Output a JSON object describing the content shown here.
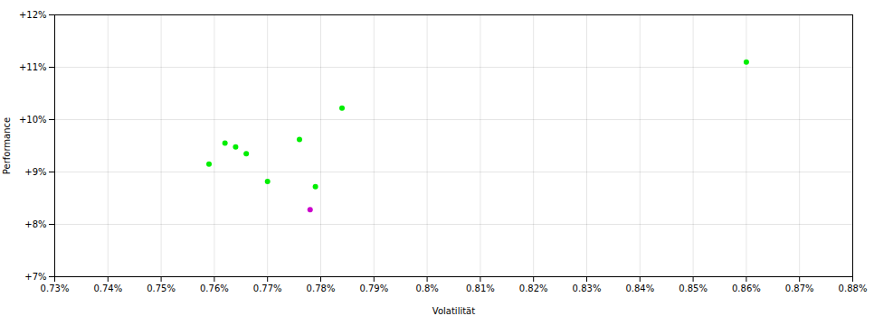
{
  "chart_data": {
    "type": "scatter",
    "xlabel": "Volatilität",
    "ylabel": "Performance",
    "series": [
      {
        "color": "#00ee00",
        "values": [
          [
            0.759,
            9.15
          ],
          [
            0.762,
            9.55
          ],
          [
            0.764,
            9.48
          ],
          [
            0.766,
            9.35
          ],
          [
            0.77,
            8.82
          ],
          [
            0.776,
            9.62
          ],
          [
            0.779,
            8.72
          ],
          [
            0.784,
            10.22
          ],
          [
            0.86,
            11.1
          ]
        ]
      },
      {
        "color": "#cc00cc",
        "values": [
          [
            0.778,
            8.28
          ]
        ]
      }
    ],
    "xlim": [
      0.73,
      0.88
    ],
    "ylim": [
      7.0,
      12.0
    ],
    "xticks": [
      {
        "value": 0.73,
        "label": "0.73%"
      },
      {
        "value": 0.74,
        "label": "0.74%"
      },
      {
        "value": 0.75,
        "label": "0.75%"
      },
      {
        "value": 0.76,
        "label": "0.76%"
      },
      {
        "value": 0.77,
        "label": "0.77%"
      },
      {
        "value": 0.78,
        "label": "0.78%"
      },
      {
        "value": 0.79,
        "label": "0.79%"
      },
      {
        "value": 0.8,
        "label": "0.8%"
      },
      {
        "value": 0.81,
        "label": "0.81%"
      },
      {
        "value": 0.82,
        "label": "0.82%"
      },
      {
        "value": 0.83,
        "label": "0.83%"
      },
      {
        "value": 0.84,
        "label": "0.84%"
      },
      {
        "value": 0.85,
        "label": "0.85%"
      },
      {
        "value": 0.86,
        "label": "0.86%"
      },
      {
        "value": 0.87,
        "label": "0.87%"
      },
      {
        "value": 0.88,
        "label": "0.88%"
      }
    ],
    "yticks": [
      {
        "value": 7,
        "label": "+7%"
      },
      {
        "value": 8,
        "label": "+8%"
      },
      {
        "value": 9,
        "label": "+9%"
      },
      {
        "value": 10,
        "label": "+10%"
      },
      {
        "value": 11,
        "label": "+11%"
      },
      {
        "value": 12,
        "label": "+12%"
      }
    ],
    "grid": true
  }
}
